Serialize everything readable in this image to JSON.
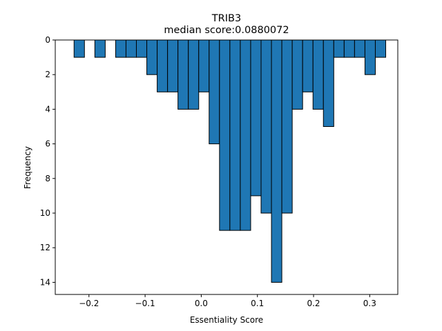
{
  "chart_data": {
    "type": "bar",
    "title": "TRIB3",
    "subtitle": "median score:0.0880072",
    "xlabel": "Essentiality Score",
    "ylabel": "Frequency",
    "xlim": [
      -0.26,
      0.35
    ],
    "ylim": [
      14.7,
      0
    ],
    "y_inverted": true,
    "grid": false,
    "bar_color": "#1f77b4",
    "edge_color": "#000000",
    "bin_width": 0.0185,
    "xticks": [
      -0.2,
      -0.1,
      0.0,
      0.1,
      0.2,
      0.3
    ],
    "xtick_labels": [
      "−0.2",
      "−0.1",
      "0.0",
      "0.1",
      "0.2",
      "0.3"
    ],
    "yticks": [
      0,
      2,
      4,
      6,
      8,
      10,
      12,
      14
    ],
    "ytick_labels": [
      "0",
      "2",
      "4",
      "6",
      "8",
      "10",
      "12",
      "14"
    ],
    "bins": [
      {
        "x0": -0.2265,
        "value": 1
      },
      {
        "x0": -0.1895,
        "value": 1
      },
      {
        "x0": -0.1525,
        "value": 1
      },
      {
        "x0": -0.134,
        "value": 1
      },
      {
        "x0": -0.1155,
        "value": 1
      },
      {
        "x0": -0.097,
        "value": 2
      },
      {
        "x0": -0.0785,
        "value": 3
      },
      {
        "x0": -0.06,
        "value": 3
      },
      {
        "x0": -0.0415,
        "value": 4
      },
      {
        "x0": -0.023,
        "value": 4
      },
      {
        "x0": -0.0045,
        "value": 3
      },
      {
        "x0": 0.014,
        "value": 6
      },
      {
        "x0": 0.0325,
        "value": 11
      },
      {
        "x0": 0.051,
        "value": 11
      },
      {
        "x0": 0.0695,
        "value": 11
      },
      {
        "x0": 0.088,
        "value": 9
      },
      {
        "x0": 0.1065,
        "value": 10
      },
      {
        "x0": 0.125,
        "value": 14
      },
      {
        "x0": 0.1435,
        "value": 10
      },
      {
        "x0": 0.162,
        "value": 4
      },
      {
        "x0": 0.1805,
        "value": 3
      },
      {
        "x0": 0.199,
        "value": 4
      },
      {
        "x0": 0.2175,
        "value": 5
      },
      {
        "x0": 0.236,
        "value": 1
      },
      {
        "x0": 0.2545,
        "value": 1
      },
      {
        "x0": 0.273,
        "value": 1
      },
      {
        "x0": 0.2915,
        "value": 2
      },
      {
        "x0": 0.31,
        "value": 1
      }
    ]
  }
}
